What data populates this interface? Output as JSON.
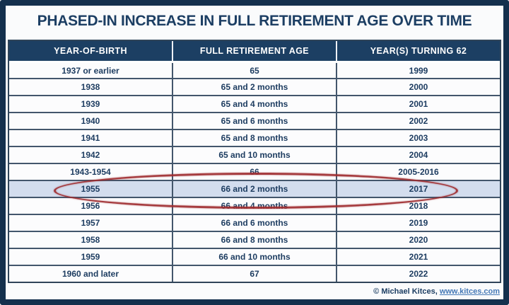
{
  "title": "PHASED-IN INCREASE IN FULL RETIREMENT AGE OVER TIME",
  "table": {
    "headers": [
      "YEAR-OF-BIRTH",
      "FULL RETIREMENT AGE",
      "YEAR(S) TURNING 62"
    ],
    "rows": [
      {
        "cells": [
          "1937 or earlier",
          "65",
          "1999"
        ],
        "highlight": false
      },
      {
        "cells": [
          "1938",
          "65 and 2 months",
          "2000"
        ],
        "highlight": false
      },
      {
        "cells": [
          "1939",
          "65 and 4 months",
          "2001"
        ],
        "highlight": false
      },
      {
        "cells": [
          "1940",
          "65 and 6 months",
          "2002"
        ],
        "highlight": false
      },
      {
        "cells": [
          "1941",
          "65 and 8 months",
          "2003"
        ],
        "highlight": false
      },
      {
        "cells": [
          "1942",
          "65 and 10 months",
          "2004"
        ],
        "highlight": false
      },
      {
        "cells": [
          "1943-1954",
          "66",
          "2005-2016"
        ],
        "highlight": false
      },
      {
        "cells": [
          "1955",
          "66 and 2 months",
          "2017"
        ],
        "highlight": true
      },
      {
        "cells": [
          "1956",
          "66 and 4 months",
          "2018"
        ],
        "highlight": false
      },
      {
        "cells": [
          "1957",
          "66 and 6 months",
          "2019"
        ],
        "highlight": false
      },
      {
        "cells": [
          "1958",
          "66 and 8 months",
          "2020"
        ],
        "highlight": false
      },
      {
        "cells": [
          "1959",
          "66 and 10 months",
          "2021"
        ],
        "highlight": false
      },
      {
        "cells": [
          "1960 and later",
          "67",
          "2022"
        ],
        "highlight": false
      }
    ]
  },
  "footer": {
    "copyright": "© Michael Kitces,",
    "link": "www.kitces.com"
  },
  "colors": {
    "frame_navy": "#14304d",
    "header_navy": "#1c3f63",
    "text_navy": "#1e3d61",
    "row_border": "#43566c",
    "highlight_row_bg": "#d3ddee",
    "highlight_circle_red": "#9e2b2f",
    "link_blue": "#4478b6"
  },
  "chart_data": {
    "type": "table",
    "title": "PHASED-IN INCREASE IN FULL RETIREMENT AGE OVER TIME",
    "columns": [
      "YEAR-OF-BIRTH",
      "FULL RETIREMENT AGE",
      "YEAR(S) TURNING 62"
    ],
    "rows": [
      [
        "1937 or earlier",
        "65",
        "1999"
      ],
      [
        "1938",
        "65 and 2 months",
        "2000"
      ],
      [
        "1939",
        "65 and 4 months",
        "2001"
      ],
      [
        "1940",
        "65 and 6 months",
        "2002"
      ],
      [
        "1941",
        "65 and 8 months",
        "2003"
      ],
      [
        "1942",
        "65 and 10 months",
        "2004"
      ],
      [
        "1943-1954",
        "66",
        "2005-2016"
      ],
      [
        "1955",
        "66 and 2 months",
        "2017"
      ],
      [
        "1956",
        "66 and 4 months",
        "2018"
      ],
      [
        "1957",
        "66 and 6 months",
        "2019"
      ],
      [
        "1958",
        "66 and 8 months",
        "2020"
      ],
      [
        "1959",
        "66 and 10 months",
        "2021"
      ],
      [
        "1960 and later",
        "67",
        "2022"
      ]
    ],
    "highlighted_row": [
      "1955",
      "66 and 2 months",
      "2017"
    ],
    "annotation": "hand-drawn red ellipse circling the 1955 row"
  }
}
